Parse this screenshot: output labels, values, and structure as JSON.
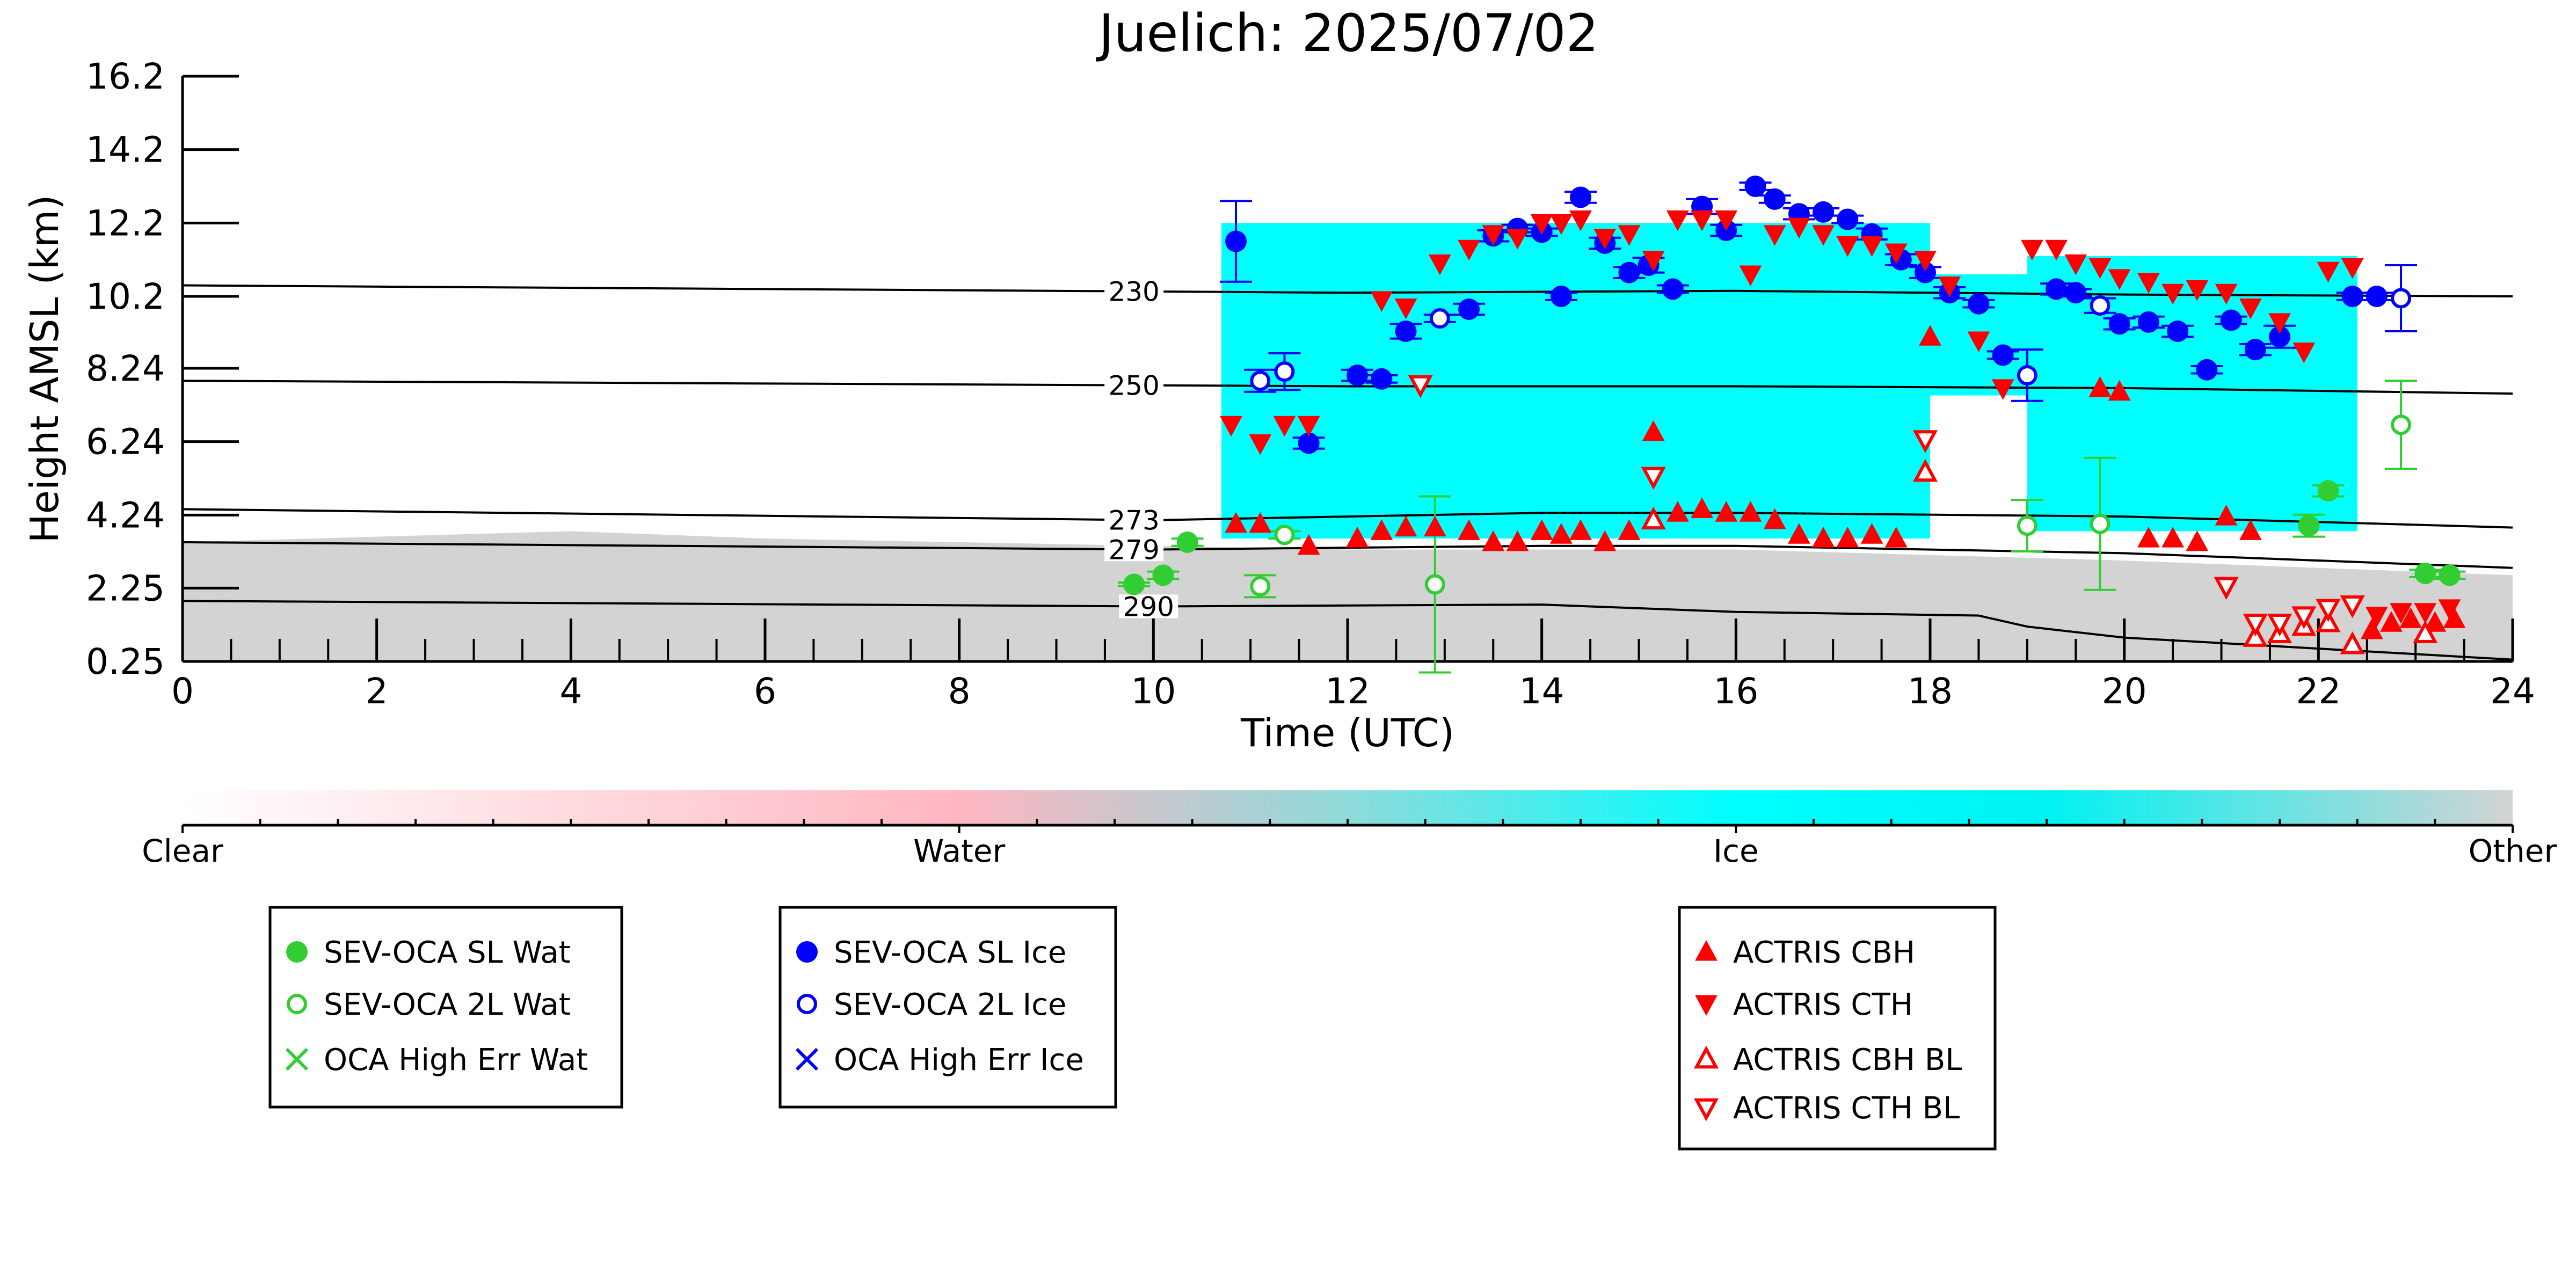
{
  "chart_data": {
    "type": "scatter",
    "title": "Juelich: 2025/07/02",
    "xlabel": "Time (UTC)",
    "ylabel": "Height AMSL (km)",
    "xlim": [
      0,
      24
    ],
    "ylim": [
      0.25,
      16.2
    ],
    "x_ticks": [
      "0",
      "2",
      "4",
      "6",
      "8",
      "10",
      "12",
      "14",
      "16",
      "18",
      "20",
      "22",
      "24"
    ],
    "y_ticks": [
      "0.25",
      "2.25",
      "4.24",
      "6.24",
      "8.24",
      "10.2",
      "12.2",
      "14.2",
      "16.2"
    ],
    "grid": false,
    "background_classification": {
      "colorbar_labels": [
        "Clear",
        "Water",
        "Ice",
        "Other"
      ],
      "colors": {
        "clear": "#ffffff",
        "water": "#ffb6c1",
        "ice": "#00ffff",
        "other": "#d3d3d3"
      },
      "other_layer_top_km": [
        [
          0,
          3.5
        ],
        [
          4,
          3.8
        ],
        [
          6,
          3.6
        ],
        [
          8,
          3.5
        ],
        [
          10,
          3.4
        ],
        [
          12,
          3.3
        ],
        [
          16,
          3.3
        ],
        [
          20,
          3.0
        ],
        [
          24,
          2.6
        ]
      ],
      "ice_cloud_regions": [
        {
          "t_start": 10.7,
          "t_end": 18.0,
          "base_km": 3.6,
          "top_km": 12.2
        },
        {
          "t_start": 18.0,
          "t_end": 19.0,
          "base_km": 7.5,
          "top_km": 10.8
        },
        {
          "t_start": 19.0,
          "t_end": 22.4,
          "base_km": 3.8,
          "top_km": 11.3
        }
      ]
    },
    "isotherm_labels": [
      "230",
      "250",
      "273",
      "279",
      "290"
    ],
    "isotherms": [
      {
        "label": "230",
        "x": [
          0,
          12,
          16,
          20,
          24
        ],
        "y": [
          10.5,
          10.3,
          10.35,
          10.25,
          10.2
        ]
      },
      {
        "label": "250",
        "x": [
          0,
          12,
          16,
          20,
          24
        ],
        "y": [
          7.9,
          7.75,
          7.75,
          7.7,
          7.55
        ]
      },
      {
        "label": "273",
        "x": [
          0,
          10,
          14,
          16,
          20,
          24
        ],
        "y": [
          4.4,
          4.1,
          4.3,
          4.3,
          4.2,
          3.9
        ]
      },
      {
        "label": "279",
        "x": [
          0,
          10,
          14,
          16,
          20,
          24
        ],
        "y": [
          3.5,
          3.3,
          3.4,
          3.4,
          3.2,
          2.8
        ]
      },
      {
        "label": "290",
        "x": [
          0,
          10,
          14,
          16,
          18.5,
          19,
          20,
          22,
          24
        ],
        "y": [
          1.9,
          1.75,
          1.8,
          1.6,
          1.5,
          1.2,
          0.9,
          0.6,
          0.3
        ]
      }
    ],
    "series": [
      {
        "name": "SEV-OCA SL Wat",
        "color": "#32cd32",
        "marker": "filled-circle",
        "x": [
          9.8,
          10.1,
          10.35,
          21.9,
          22.1,
          23.1,
          23.35
        ],
        "y": [
          2.35,
          2.6,
          3.5,
          3.95,
          4.9,
          2.65,
          2.6
        ],
        "err": [
          0.05,
          0.1,
          0.1,
          0.3,
          0.15,
          0.1,
          0.1
        ]
      },
      {
        "name": "SEV-OCA 2L Wat",
        "color": "#32cd32",
        "marker": "open-circle",
        "x": [
          11.1,
          11.35,
          12.9,
          19.0,
          19.75,
          22.85
        ],
        "y": [
          2.3,
          3.7,
          2.35,
          3.95,
          4.0,
          6.7
        ],
        "err": [
          0.3,
          0.1,
          2.4,
          0.7,
          1.8,
          1.2
        ]
      },
      {
        "name": "OCA High Err Wat",
        "color": "#32cd32",
        "marker": "x",
        "x": [],
        "y": []
      },
      {
        "name": "SEV-OCA SL Ice",
        "color": "#0000ff",
        "marker": "filled-circle",
        "x": [
          10.85,
          11.6,
          12.1,
          12.35,
          12.6,
          13.25,
          13.5,
          13.75,
          14.0,
          14.2,
          14.4,
          14.65,
          14.9,
          15.1,
          15.35,
          15.65,
          15.9,
          16.2,
          16.4,
          16.65,
          16.9,
          17.15,
          17.4,
          17.7,
          17.95,
          18.2,
          18.5,
          18.75,
          19.3,
          19.5,
          19.95,
          20.25,
          20.55,
          20.85,
          21.1,
          21.35,
          21.6,
          22.35,
          22.6
        ],
        "y": [
          11.7,
          6.2,
          8.05,
          7.95,
          9.25,
          9.85,
          11.85,
          12.05,
          11.95,
          10.2,
          12.9,
          11.65,
          10.85,
          11.05,
          10.4,
          12.65,
          12.0,
          13.2,
          12.85,
          12.45,
          12.5,
          12.3,
          11.9,
          11.2,
          10.85,
          10.3,
          10.0,
          8.6,
          10.4,
          10.3,
          9.45,
          9.5,
          9.25,
          8.2,
          9.55,
          8.75,
          9.1,
          10.2,
          10.2
        ],
        "err": [
          1.1,
          0.15,
          0.15,
          0.1,
          0.2,
          0.15,
          0.15,
          0.1,
          0.1,
          0.1,
          0.15,
          0.15,
          0.15,
          0.2,
          0.1,
          0.2,
          0.15,
          0.1,
          0.1,
          0.15,
          0.1,
          0.1,
          0.15,
          0.15,
          0.15,
          0.15,
          0.1,
          0.1,
          0.15,
          0.1,
          0.15,
          0.15,
          0.15,
          0.1,
          0.1,
          0.15,
          0.3,
          0.1,
          0.1
        ]
      },
      {
        "name": "SEV-OCA 2L Ice",
        "color": "#0000ff",
        "marker": "open-circle",
        "x": [
          11.1,
          11.35,
          12.95,
          19.0,
          19.75,
          22.85
        ],
        "y": [
          7.9,
          8.15,
          9.6,
          8.05,
          9.95,
          10.15
        ],
        "err": [
          0.3,
          0.5,
          0.1,
          0.7,
          0.2,
          0.9
        ]
      },
      {
        "name": "OCA High Err Ice",
        "color": "#0000ff",
        "marker": "x",
        "x": [],
        "y": []
      },
      {
        "name": "ACTRIS CBH",
        "color": "#ff0000",
        "marker": "triangle-up",
        "x": [
          10.85,
          11.1,
          11.6,
          12.1,
          12.35,
          12.6,
          12.9,
          13.25,
          13.5,
          13.75,
          14.0,
          14.2,
          14.4,
          14.65,
          14.9,
          15.15,
          15.4,
          15.65,
          15.9,
          16.15,
          16.4,
          16.65,
          16.9,
          17.15,
          17.4,
          17.65,
          18.0,
          19.75,
          19.95,
          20.25,
          20.5,
          20.75,
          21.05,
          21.3,
          22.55,
          22.75,
          22.95,
          23.2,
          23.4
        ],
        "y": [
          4.0,
          4.0,
          3.4,
          3.6,
          3.8,
          3.9,
          3.9,
          3.8,
          3.5,
          3.5,
          3.8,
          3.7,
          3.8,
          3.5,
          3.8,
          6.5,
          4.3,
          4.4,
          4.3,
          4.3,
          4.1,
          3.7,
          3.6,
          3.6,
          3.7,
          3.6,
          9.1,
          7.7,
          7.6,
          3.6,
          3.6,
          3.5,
          4.2,
          3.8,
          1.1,
          1.3,
          1.4,
          1.3,
          1.4
        ]
      },
      {
        "name": "ACTRIS CTH",
        "color": "#ff0000",
        "marker": "triangle-down",
        "x": [
          10.8,
          11.1,
          11.35,
          11.6,
          12.35,
          12.6,
          12.95,
          13.25,
          13.5,
          13.75,
          14.0,
          14.2,
          14.4,
          14.65,
          14.9,
          15.15,
          15.4,
          15.65,
          15.9,
          16.15,
          16.4,
          16.65,
          16.9,
          17.15,
          17.4,
          17.65,
          17.95,
          18.2,
          18.5,
          18.75,
          19.05,
          19.3,
          19.5,
          19.75,
          19.95,
          20.25,
          20.5,
          20.75,
          21.05,
          21.3,
          21.6,
          21.85,
          22.1,
          22.35,
          22.6,
          22.85,
          23.1,
          23.35
        ],
        "y": [
          6.7,
          6.2,
          6.7,
          6.7,
          10.1,
          9.9,
          11.1,
          11.5,
          11.9,
          11.8,
          12.2,
          12.2,
          12.3,
          11.8,
          11.9,
          11.2,
          12.3,
          12.3,
          12.3,
          10.8,
          11.9,
          12.1,
          11.9,
          11.6,
          11.6,
          11.4,
          11.2,
          10.5,
          9.0,
          7.7,
          11.5,
          11.5,
          11.1,
          11.0,
          10.7,
          10.6,
          10.3,
          10.4,
          10.3,
          9.9,
          9.5,
          8.7,
          10.9,
          11.0,
          1.5,
          1.6,
          1.6,
          1.7
        ]
      },
      {
        "name": "ACTRIS CBH BL",
        "color": "#ff0000",
        "marker": "open-triangle-up",
        "x": [
          15.15,
          17.95,
          21.35,
          21.6,
          21.85,
          22.1,
          22.35,
          23.1
        ],
        "y": [
          4.1,
          5.4,
          0.9,
          1.0,
          1.2,
          1.3,
          0.7,
          1.0
        ]
      },
      {
        "name": "ACTRIS CTH BL",
        "color": "#ff0000",
        "marker": "open-triangle-down",
        "x": [
          12.75,
          15.15,
          17.95,
          21.05,
          21.35,
          21.6,
          21.85,
          22.1,
          22.35
        ],
        "y": [
          7.8,
          5.3,
          6.3,
          2.3,
          1.3,
          1.3,
          1.5,
          1.7,
          1.8
        ]
      }
    ]
  }
}
